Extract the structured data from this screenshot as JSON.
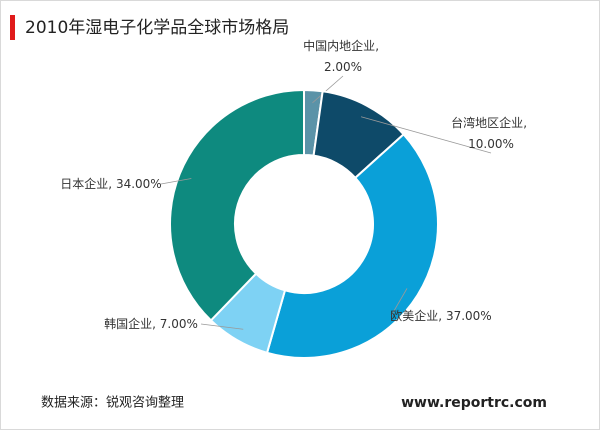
{
  "chart_data": {
    "type": "donut",
    "title": "2010年湿电子化学品全球市场格局",
    "categories": [
      "中国内地企业",
      "台湾地区企业",
      "欧美企业",
      "韩国企业",
      "日本企业"
    ],
    "values": [
      2,
      10,
      37,
      7,
      34
    ],
    "value_labels": [
      "2.00%",
      "10.00%",
      "37.00%",
      "7.00%",
      "34.00%"
    ],
    "label_separator": ", ",
    "colors": [
      "#5b93a8",
      "#0e4a69",
      "#0aa0d8",
      "#7ed2f4",
      "#0e8a7f"
    ],
    "source": "数据来源：锐观咨询整理",
    "website": "www.reportrc.com"
  }
}
